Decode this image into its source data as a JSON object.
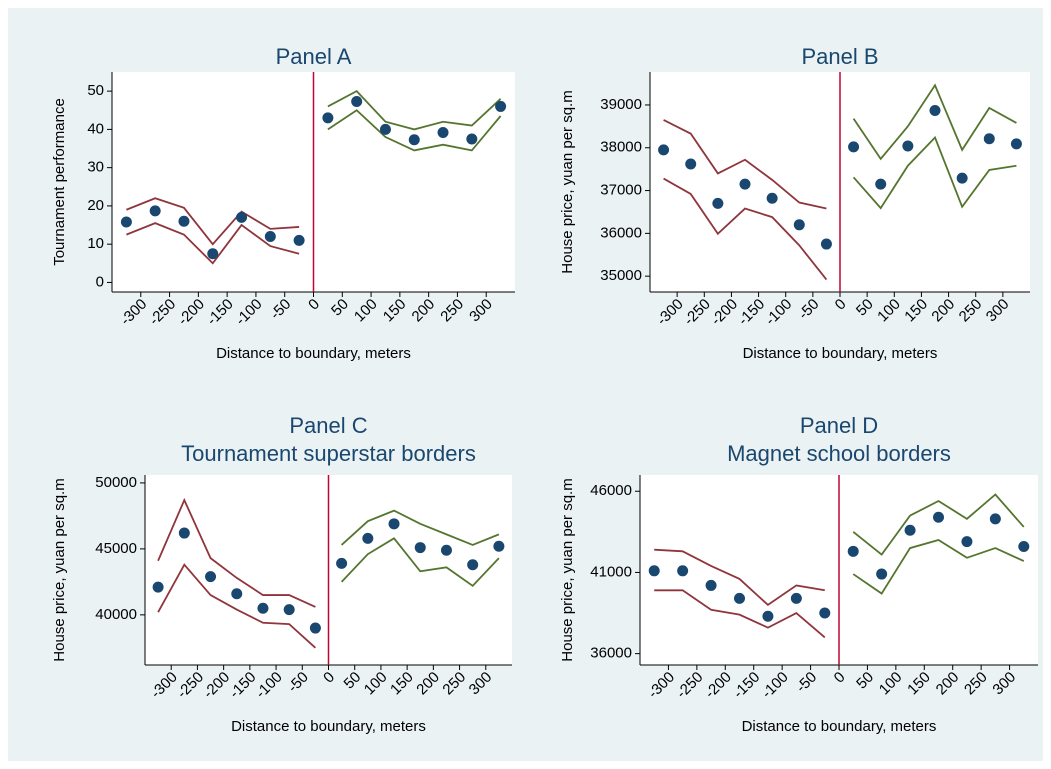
{
  "chart_data": [
    {
      "type": "line",
      "title": "Panel A",
      "xlabel": "Distance to boundary, meters",
      "ylabel": "Tournament performance",
      "xlim": [
        -350,
        350
      ],
      "xticks": [
        -300,
        -250,
        -200,
        -150,
        -100,
        -50,
        0,
        50,
        100,
        150,
        200,
        250,
        300
      ],
      "ylim": [
        -2.5,
        55
      ],
      "yticks": [
        0,
        10,
        20,
        30,
        40,
        50
      ],
      "xline": 0,
      "xline_color": "#c10534",
      "marker_color": "#1a476f",
      "series": [
        {
          "color": "#90353b",
          "x": [
            -325,
            -275,
            -225,
            -175,
            -125,
            -75,
            -25
          ],
          "values": [
            15.8,
            18.7,
            16,
            7.5,
            17,
            12,
            11
          ],
          "upper": [
            19,
            22,
            19.5,
            10,
            18.5,
            14,
            14.5
          ],
          "lower": [
            12.5,
            15.5,
            12.5,
            5,
            15,
            9.5,
            7.5
          ]
        },
        {
          "color": "#55752f",
          "x": [
            25,
            75,
            125,
            175,
            225,
            275,
            325
          ],
          "values": [
            43,
            47.3,
            40,
            37.3,
            39.2,
            37.5,
            46
          ],
          "upper": [
            46,
            50,
            42,
            40,
            42,
            41,
            48
          ],
          "lower": [
            40,
            45,
            38,
            34.5,
            36,
            34.5,
            43.5
          ]
        }
      ]
    },
    {
      "type": "line",
      "title": "Panel B",
      "xlabel": "Distance to boundary, meters",
      "ylabel": "House price, yuan per sq.m",
      "xlim": [
        -350,
        350
      ],
      "xticks": [
        -300,
        -250,
        -200,
        -150,
        -100,
        -50,
        0,
        50,
        100,
        150,
        200,
        250,
        300
      ],
      "ylim": [
        34630,
        39770
      ],
      "yticks": [
        35000,
        36000,
        37000,
        38000,
        39000
      ],
      "xline": 0,
      "xline_color": "#c10534",
      "marker_color": "#1a476f",
      "series": [
        {
          "color": "#90353b",
          "x": [
            -325,
            -275,
            -225,
            -175,
            -125,
            -75,
            -25
          ],
          "values": [
            37950,
            37620,
            36700,
            37150,
            36820,
            36200,
            35750
          ],
          "upper": [
            38650,
            38330,
            37400,
            37720,
            37250,
            36720,
            36580
          ],
          "lower": [
            37280,
            36920,
            35990,
            36580,
            36380,
            35720,
            34920
          ]
        },
        {
          "color": "#55752f",
          "x": [
            25,
            75,
            125,
            175,
            225,
            275,
            325
          ],
          "values": [
            38020,
            37150,
            38040,
            38870,
            37290,
            38210,
            38090
          ],
          "upper": [
            38680,
            37740,
            38500,
            39460,
            37950,
            38930,
            38580
          ],
          "lower": [
            37310,
            36590,
            37580,
            38240,
            36620,
            37480,
            37580
          ]
        }
      ]
    },
    {
      "type": "line",
      "title": "Panel C",
      "subtitle": "Tournament superstar borders",
      "xlabel": "Distance to boundary, meters",
      "ylabel": "House price, yuan per sq.m",
      "xlim": [
        -350,
        350
      ],
      "xticks": [
        -300,
        -250,
        -200,
        -150,
        -100,
        -50,
        0,
        50,
        100,
        150,
        200,
        250,
        300
      ],
      "ylim": [
        36200,
        50600
      ],
      "yticks": [
        40000,
        45000,
        50000
      ],
      "xline": 0,
      "xline_color": "#c10534",
      "marker_color": "#1a476f",
      "series": [
        {
          "color": "#90353b",
          "x": [
            -325,
            -275,
            -225,
            -175,
            -125,
            -75,
            -25
          ],
          "values": [
            42100,
            46200,
            42900,
            41600,
            40500,
            40400,
            39000
          ],
          "upper": [
            44100,
            48700,
            44300,
            42800,
            41500,
            41500,
            40600
          ],
          "lower": [
            40200,
            43800,
            41500,
            40400,
            39400,
            39300,
            37500
          ]
        },
        {
          "color": "#55752f",
          "x": [
            25,
            75,
            125,
            175,
            225,
            275,
            325
          ],
          "values": [
            43900,
            45800,
            46900,
            45100,
            44900,
            43800,
            45200
          ],
          "upper": [
            45300,
            47100,
            47900,
            46900,
            46100,
            45300,
            46100
          ],
          "lower": [
            42500,
            44600,
            45800,
            43300,
            43600,
            42200,
            44300
          ]
        }
      ]
    },
    {
      "type": "line",
      "title": "Panel D",
      "subtitle": "Magnet school borders",
      "xlabel": "Distance to boundary, meters",
      "ylabel": "House price, yuan per sq.m",
      "xlim": [
        -350,
        350
      ],
      "xticks": [
        -300,
        -250,
        -200,
        -150,
        -100,
        -50,
        0,
        50,
        100,
        150,
        200,
        250,
        300
      ],
      "ylim": [
        35300,
        47000
      ],
      "yticks": [
        36000,
        41000,
        46000
      ],
      "xline": 0,
      "xline_color": "#c10534",
      "marker_color": "#1a476f",
      "series": [
        {
          "color": "#90353b",
          "x": [
            -325,
            -275,
            -225,
            -175,
            -125,
            -75,
            -25
          ],
          "values": [
            41100,
            41100,
            40200,
            39400,
            38300,
            39400,
            38500
          ],
          "upper": [
            42400,
            42300,
            41400,
            40600,
            39000,
            40200,
            39900
          ],
          "lower": [
            39900,
            39900,
            38700,
            38400,
            37600,
            38500,
            37000
          ]
        },
        {
          "color": "#55752f",
          "x": [
            25,
            75,
            125,
            175,
            225,
            275,
            325
          ],
          "values": [
            42300,
            40900,
            43600,
            44400,
            42900,
            44300,
            42600
          ],
          "upper": [
            43500,
            42100,
            44500,
            45400,
            44300,
            45800,
            43800
          ],
          "lower": [
            40900,
            39700,
            42500,
            43000,
            41900,
            42500,
            41700
          ]
        }
      ]
    }
  ]
}
